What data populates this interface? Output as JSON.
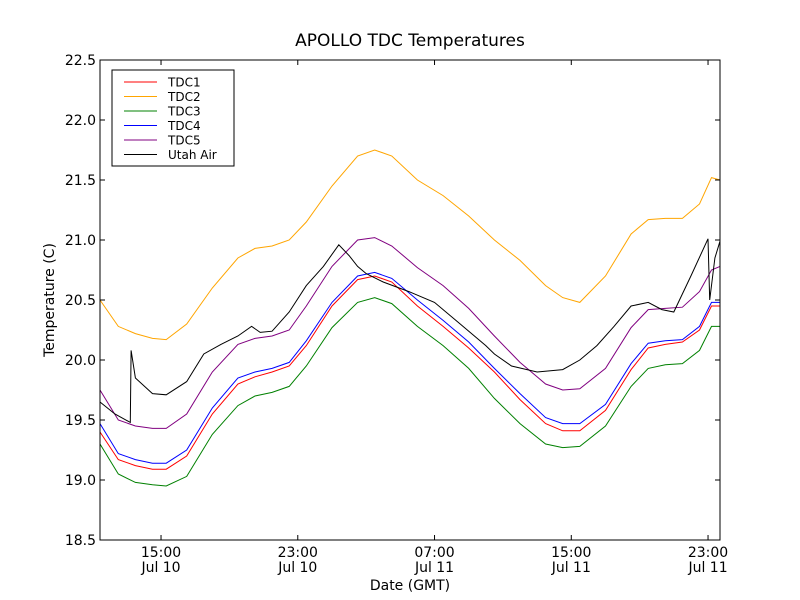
{
  "chart_data": {
    "type": "line",
    "title": "APOLLO TDC Temperatures",
    "xlabel": "Date (GMT)",
    "ylabel": "Temperature (C)",
    "ylim": [
      18.5,
      22.5
    ],
    "xlim_hours_since_jul10_0000": [
      11.43,
      47.7
    ],
    "yticks": [
      "18.5",
      "19.0",
      "19.5",
      "20.0",
      "20.5",
      "21.0",
      "21.5",
      "22.0",
      "22.5"
    ],
    "xticks": [
      {
        "hour": 15,
        "time": "15:00",
        "date": "Jul 10"
      },
      {
        "hour": 23,
        "time": "23:00",
        "date": "Jul 10"
      },
      {
        "hour": 31,
        "time": "07:00",
        "date": "Jul 11"
      },
      {
        "hour": 39,
        "time": "15:00",
        "date": "Jul 11"
      },
      {
        "hour": 47,
        "time": "23:00",
        "date": "Jul 11"
      }
    ],
    "legend_position": "top-left",
    "x_unit": "hours since Jul 10 00:00 GMT",
    "series": [
      {
        "name": "TDC1",
        "color": "#ff0000",
        "x": [
          11.43,
          12.5,
          13.5,
          14.5,
          15.3,
          16.5,
          18,
          19.5,
          20.5,
          21.5,
          22.5,
          23.5,
          25,
          26.5,
          27.5,
          28.5,
          30,
          31.5,
          33,
          34.5,
          36,
          37.5,
          38.5,
          39.5,
          41,
          42.5,
          43.5,
          44.5,
          45.5,
          46.5,
          47.2,
          47.7
        ],
        "y": [
          19.4,
          19.17,
          19.12,
          19.09,
          19.09,
          19.2,
          19.55,
          19.8,
          19.86,
          19.9,
          19.95,
          20.12,
          20.45,
          20.67,
          20.7,
          20.65,
          20.45,
          20.28,
          20.1,
          19.9,
          19.67,
          19.47,
          19.41,
          19.41,
          19.58,
          19.92,
          20.1,
          20.13,
          20.15,
          20.25,
          20.45,
          20.45
        ]
      },
      {
        "name": "TDC2",
        "color": "#ffa500",
        "x": [
          11.43,
          12.5,
          13.5,
          14.5,
          15.3,
          16.5,
          18,
          19.5,
          20.5,
          21.5,
          22.5,
          23.5,
          25,
          26.5,
          27.5,
          28.5,
          30,
          31.5,
          33,
          34.5,
          36,
          37.5,
          38.5,
          39.5,
          41,
          42.5,
          43.5,
          44.5,
          45.5,
          46.5,
          47.2,
          47.7
        ],
        "y": [
          20.5,
          20.28,
          20.22,
          20.18,
          20.17,
          20.3,
          20.6,
          20.85,
          20.93,
          20.95,
          21.0,
          21.15,
          21.45,
          21.7,
          21.75,
          21.7,
          21.5,
          21.37,
          21.2,
          21.0,
          20.83,
          20.62,
          20.52,
          20.48,
          20.7,
          21.05,
          21.17,
          21.18,
          21.18,
          21.3,
          21.52,
          21.5
        ]
      },
      {
        "name": "TDC3",
        "color": "#008000",
        "x": [
          11.43,
          12.5,
          13.5,
          14.5,
          15.3,
          16.5,
          18,
          19.5,
          20.5,
          21.5,
          22.5,
          23.5,
          25,
          26.5,
          27.5,
          28.5,
          30,
          31.5,
          33,
          34.5,
          36,
          37.5,
          38.5,
          39.5,
          41,
          42.5,
          43.5,
          44.5,
          45.5,
          46.5,
          47.2,
          47.7
        ],
        "y": [
          19.3,
          19.05,
          18.98,
          18.96,
          18.95,
          19.03,
          19.38,
          19.62,
          19.7,
          19.73,
          19.78,
          19.95,
          20.27,
          20.48,
          20.52,
          20.47,
          20.28,
          20.12,
          19.93,
          19.68,
          19.47,
          19.3,
          19.27,
          19.28,
          19.45,
          19.78,
          19.93,
          19.96,
          19.97,
          20.08,
          20.28,
          20.28
        ]
      },
      {
        "name": "TDC4",
        "color": "#0000ff",
        "x": [
          11.43,
          12.5,
          13.5,
          14.5,
          15.3,
          16.5,
          18,
          19.5,
          20.5,
          21.5,
          22.5,
          23.5,
          25,
          26.5,
          27.5,
          28.5,
          30,
          31.5,
          33,
          34.5,
          36,
          37.5,
          38.5,
          39.5,
          41,
          42.5,
          43.5,
          44.5,
          45.5,
          46.5,
          47.2,
          47.7
        ],
        "y": [
          19.47,
          19.22,
          19.17,
          19.14,
          19.14,
          19.25,
          19.6,
          19.85,
          19.9,
          19.93,
          19.98,
          20.16,
          20.48,
          20.7,
          20.73,
          20.68,
          20.5,
          20.33,
          20.15,
          19.93,
          19.72,
          19.52,
          19.47,
          19.47,
          19.63,
          19.97,
          20.14,
          20.16,
          20.17,
          20.28,
          20.48,
          20.48
        ]
      },
      {
        "name": "TDC5",
        "color": "#800080",
        "x": [
          11.43,
          12.5,
          13.5,
          14.5,
          15.3,
          16.5,
          18,
          19.5,
          20.5,
          21.5,
          22.5,
          23.5,
          25,
          26.5,
          27.5,
          28.5,
          30,
          31.5,
          33,
          34.5,
          36,
          37.5,
          38.5,
          39.5,
          41,
          42.5,
          43.5,
          44.5,
          45.5,
          46.5,
          47.2,
          47.7
        ],
        "y": [
          19.75,
          19.5,
          19.45,
          19.43,
          19.43,
          19.55,
          19.9,
          20.13,
          20.18,
          20.2,
          20.25,
          20.45,
          20.78,
          21.0,
          21.02,
          20.95,
          20.77,
          20.62,
          20.43,
          20.2,
          19.98,
          19.8,
          19.75,
          19.76,
          19.93,
          20.27,
          20.42,
          20.43,
          20.44,
          20.57,
          20.75,
          20.78
        ]
      },
      {
        "name": "Utah Air",
        "color": "#000000",
        "x": [
          11.43,
          12.3,
          13.2,
          13.25,
          13.5,
          14.5,
          15.3,
          16.5,
          17.5,
          18.5,
          19.5,
          20.3,
          20.8,
          21.5,
          22.5,
          23.5,
          24.5,
          25.4,
          26,
          26.5,
          27,
          28,
          29.5,
          31,
          32.5,
          34,
          34.5,
          35.5,
          37,
          38.5,
          39.5,
          40.5,
          41.5,
          42.5,
          43.5,
          44.3,
          45,
          46,
          47,
          47.1,
          47.4,
          47.7
        ],
        "y": [
          19.65,
          19.55,
          19.48,
          20.08,
          19.85,
          19.72,
          19.71,
          19.82,
          20.05,
          20.13,
          20.2,
          20.28,
          20.23,
          20.24,
          20.4,
          20.62,
          20.78,
          20.96,
          20.87,
          20.78,
          20.72,
          20.65,
          20.57,
          20.48,
          20.3,
          20.12,
          20.05,
          19.95,
          19.9,
          19.92,
          20.0,
          20.12,
          20.28,
          20.45,
          20.48,
          20.42,
          20.4,
          20.7,
          21.01,
          20.5,
          20.85,
          20.99
        ]
      }
    ]
  }
}
